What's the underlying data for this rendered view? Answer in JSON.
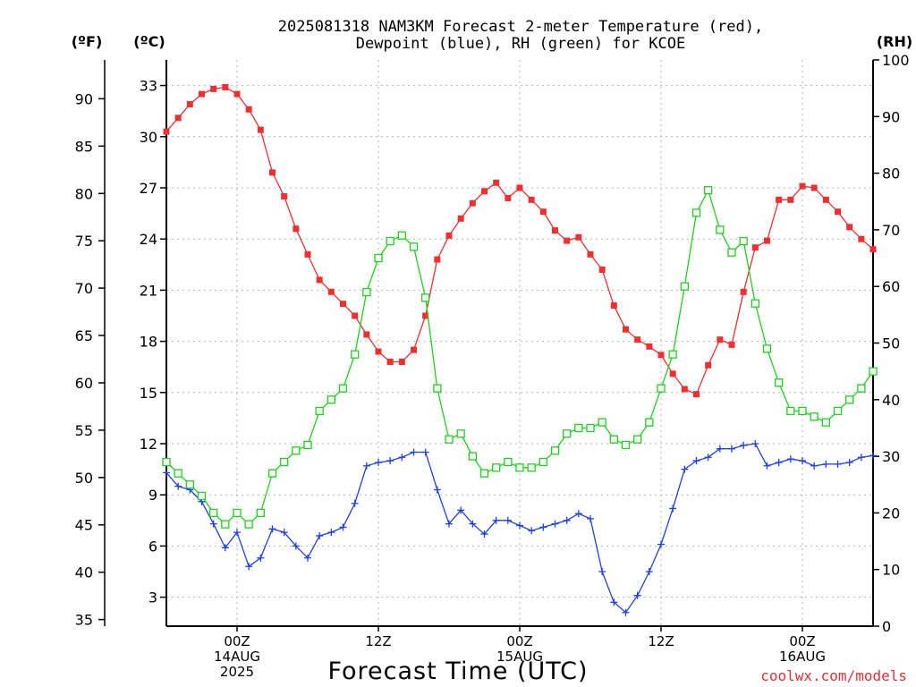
{
  "chart_data": {
    "type": "line",
    "title_lines": [
      "2025081318 NAM3KM Forecast 2-meter Temperature (red),",
      "Dewpoint (blue), RH (green) for KCOE"
    ],
    "credit": "coolwx.com/models",
    "xlabel": "Forecast Time (UTC)",
    "left_units": {
      "fahrenheit": "(ºF)",
      "celsius": "(ºC)"
    },
    "right_unit": "(RH)",
    "grid": true,
    "x_hours_range": [
      -6,
      54
    ],
    "x_ticks": [
      {
        "hour": 0,
        "lines": [
          "00Z",
          "14AUG",
          "2025"
        ]
      },
      {
        "hour": 12,
        "lines": [
          "12Z"
        ]
      },
      {
        "hour": 24,
        "lines": [
          "00Z",
          "15AUG"
        ]
      },
      {
        "hour": 36,
        "lines": [
          "12Z"
        ]
      },
      {
        "hour": 48,
        "lines": [
          "00Z",
          "16AUG"
        ]
      }
    ],
    "celsius_axis": {
      "range": [
        1.3,
        34.5
      ],
      "ticks": [
        3,
        6,
        9,
        12,
        15,
        18,
        21,
        24,
        27,
        30,
        33
      ]
    },
    "fahrenheit_axis": {
      "range": [
        34.3,
        94.1
      ],
      "ticks": [
        35,
        40,
        45,
        50,
        55,
        60,
        65,
        70,
        75,
        80,
        85,
        90
      ]
    },
    "rh_axis": {
      "range": [
        0,
        100
      ],
      "ticks": [
        0,
        10,
        20,
        30,
        40,
        50,
        60,
        70,
        80,
        90,
        100
      ]
    },
    "x_hours": [
      -6,
      -5,
      -4,
      -3,
      -2,
      -1,
      0,
      1,
      2,
      3,
      4,
      5,
      6,
      7,
      8,
      9,
      10,
      11,
      12,
      13,
      14,
      15,
      16,
      17,
      18,
      19,
      20,
      21,
      22,
      23,
      24,
      25,
      26,
      27,
      28,
      29,
      30,
      31,
      32,
      33,
      34,
      35,
      36,
      37,
      38,
      39,
      40,
      41,
      42,
      43,
      44,
      45,
      46,
      47,
      48,
      49,
      50,
      51,
      52,
      53,
      54
    ],
    "series": [
      {
        "name": "Temperature",
        "color": "#f03030",
        "marker": "filled-square",
        "axis": "celsius",
        "values": [
          30.3,
          31.1,
          31.9,
          32.5,
          32.8,
          32.9,
          32.5,
          31.6,
          30.4,
          27.9,
          26.5,
          24.6,
          23.1,
          21.6,
          20.9,
          20.2,
          19.5,
          18.4,
          17.4,
          16.8,
          16.8,
          17.5,
          19.5,
          22.8,
          24.2,
          25.2,
          26.1,
          26.8,
          27.3,
          26.4,
          27.0,
          26.3,
          25.6,
          24.5,
          23.9,
          24.1,
          23.1,
          22.2,
          20.1,
          18.7,
          18.1,
          17.7,
          17.2,
          16.1,
          15.2,
          14.9,
          16.6,
          18.1,
          17.8,
          20.9,
          23.5,
          23.9,
          26.3,
          26.3,
          27.1,
          27.0,
          26.3,
          25.6,
          24.7,
          24.0,
          23.4
        ]
      },
      {
        "name": "Dewpoint",
        "color": "#2040e8",
        "marker": "plus",
        "axis": "celsius",
        "values": [
          10.3,
          9.5,
          9.3,
          8.6,
          7.3,
          5.9,
          6.8,
          4.8,
          5.3,
          7.0,
          6.8,
          6.0,
          5.3,
          6.6,
          6.8,
          7.1,
          8.5,
          10.7,
          10.9,
          11.0,
          11.2,
          11.5,
          11.5,
          9.3,
          7.3,
          8.1,
          7.3,
          6.7,
          7.5,
          7.5,
          7.2,
          6.9,
          7.1,
          7.3,
          7.5,
          7.9,
          7.6,
          4.5,
          2.7,
          2.1,
          3.1,
          4.5,
          6.1,
          8.2,
          10.5,
          11.0,
          11.2,
          11.7,
          11.7,
          11.9,
          12.0,
          10.7,
          10.9,
          11.1,
          11.0,
          10.7,
          10.8,
          10.8,
          10.9,
          11.2,
          11.3
        ]
      },
      {
        "name": "RH",
        "color": "#20d020",
        "marker": "open-square",
        "axis": "rh",
        "values": [
          29,
          27,
          25,
          23,
          20,
          18,
          20,
          18,
          20,
          27,
          29,
          31,
          32,
          38,
          40,
          42,
          48,
          59,
          65,
          68,
          69,
          67,
          58,
          42,
          33,
          34,
          30,
          27,
          28,
          29,
          28,
          28,
          29,
          31,
          34,
          35,
          35,
          36,
          33,
          32,
          33,
          36,
          42,
          48,
          60,
          73,
          77,
          70,
          66,
          68,
          57,
          49,
          43,
          38,
          38,
          37,
          36,
          38,
          40,
          42,
          45
        ]
      }
    ]
  }
}
